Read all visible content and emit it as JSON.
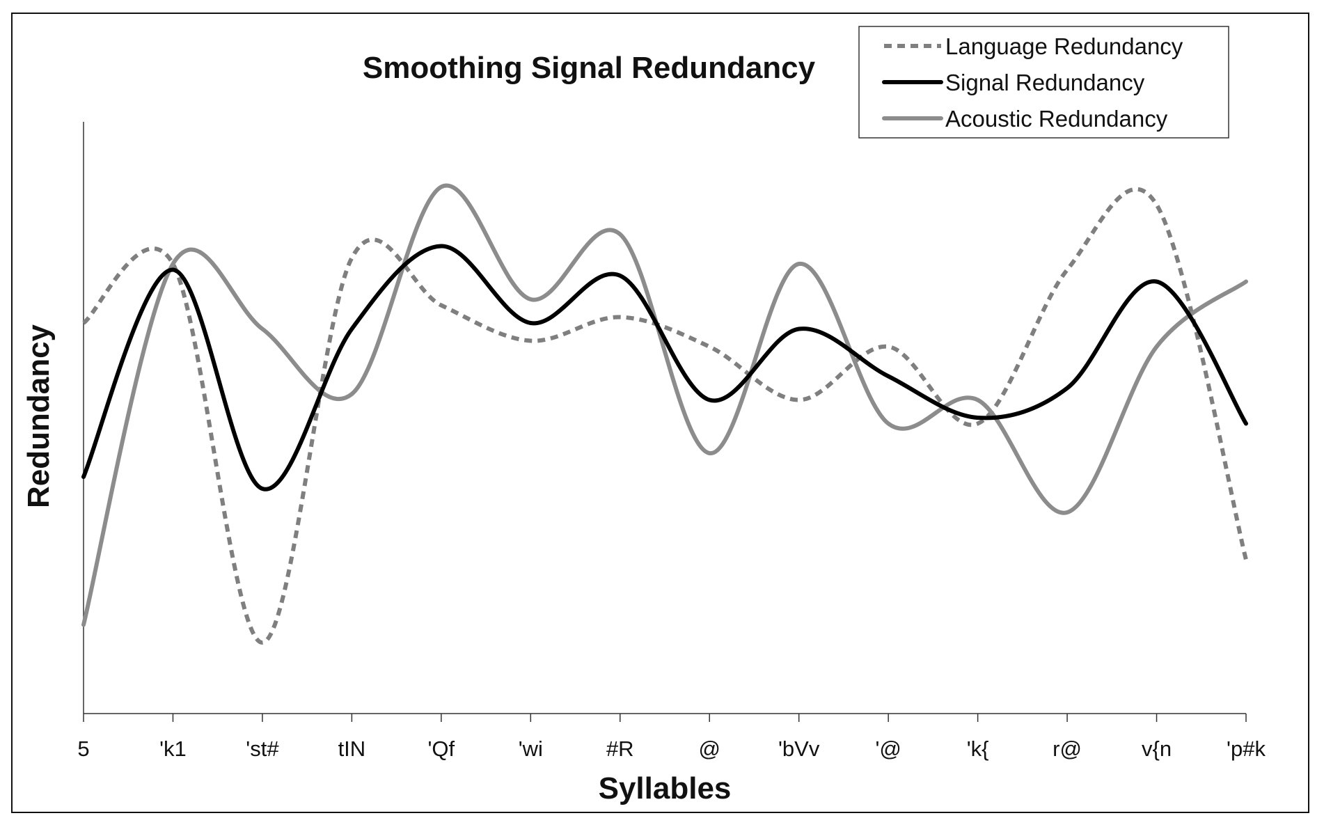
{
  "chart_data": {
    "type": "line",
    "smooth": true,
    "title": "Smoothing Signal Redundancy",
    "xlabel": "Syllables",
    "ylabel": "Redundancy",
    "categories": [
      "5",
      "'k1",
      "'st#",
      "tIN",
      "'Qf",
      "'wi",
      "#R",
      "@",
      "'bVv",
      "'@",
      "'k{",
      "r@",
      "v{n",
      "'p#k"
    ],
    "ylim": [
      0,
      1
    ],
    "grid": false,
    "y_tick_labels": false,
    "legend_position": "top-right",
    "series": [
      {
        "name": "Language Redundancy",
        "style": "dashed",
        "color": "#7f7f7f",
        "values": [
          0.66,
          0.76,
          0.12,
          0.77,
          0.69,
          0.63,
          0.67,
          0.62,
          0.53,
          0.62,
          0.49,
          0.75,
          0.86,
          0.26
        ]
      },
      {
        "name": "Signal Redundancy",
        "style": "solid",
        "color": "#000000",
        "values": [
          0.4,
          0.75,
          0.38,
          0.65,
          0.79,
          0.66,
          0.74,
          0.53,
          0.65,
          0.57,
          0.5,
          0.55,
          0.73,
          0.49
        ]
      },
      {
        "name": "Acoustic Redundancy",
        "style": "solid",
        "color": "#8c8c8c",
        "values": [
          0.15,
          0.76,
          0.65,
          0.54,
          0.89,
          0.7,
          0.81,
          0.44,
          0.76,
          0.49,
          0.53,
          0.34,
          0.62,
          0.73
        ]
      }
    ]
  }
}
